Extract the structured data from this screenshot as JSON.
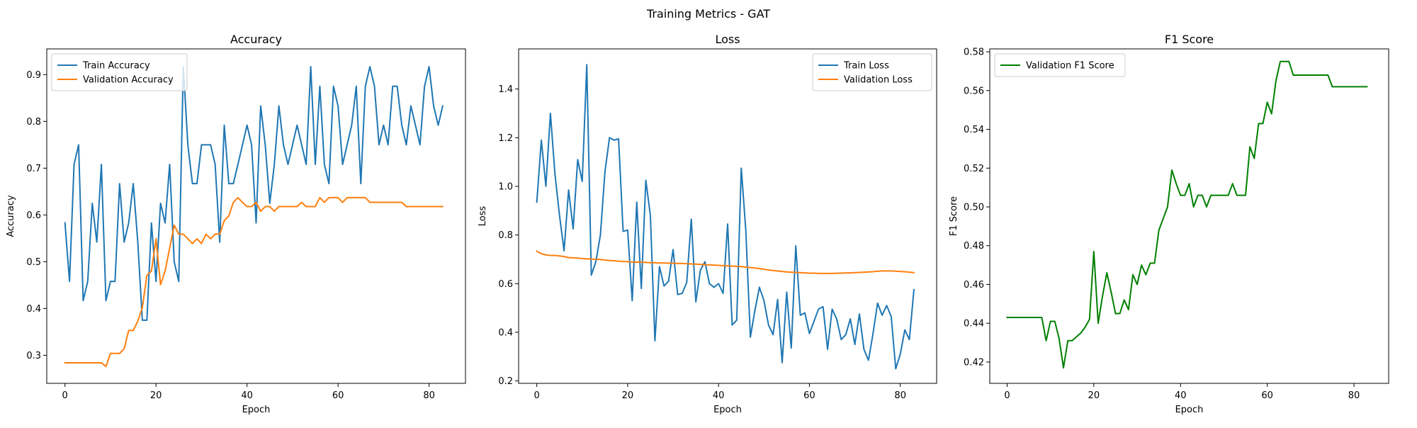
{
  "figure": {
    "suptitle": "Training Metrics - GAT"
  },
  "chart_data": [
    {
      "type": "line",
      "title": "Accuracy",
      "xlabel": "Epoch",
      "ylabel": "Accuracy",
      "xlim": [
        -4,
        88
      ],
      "ylim": [
        0.24,
        0.955
      ],
      "xticks": [
        0,
        20,
        40,
        60,
        80
      ],
      "yticks": [
        0.3,
        0.4,
        0.5,
        0.6,
        0.7,
        0.8,
        0.9
      ],
      "legend_loc": "upper-left",
      "grid": false,
      "x": [
        0,
        1,
        2,
        3,
        4,
        5,
        6,
        7,
        8,
        9,
        10,
        11,
        12,
        13,
        14,
        15,
        16,
        17,
        18,
        19,
        20,
        21,
        22,
        23,
        24,
        25,
        26,
        27,
        28,
        29,
        30,
        31,
        32,
        33,
        34,
        35,
        36,
        37,
        38,
        39,
        40,
        41,
        42,
        43,
        44,
        45,
        46,
        47,
        48,
        49,
        50,
        51,
        52,
        53,
        54,
        55,
        56,
        57,
        58,
        59,
        60,
        61,
        62,
        63,
        64,
        65,
        66,
        67,
        68,
        69,
        70,
        71,
        72,
        73,
        74,
        75,
        76,
        77,
        78,
        79,
        80,
        81,
        82,
        83
      ],
      "series": [
        {
          "name": "Train Accuracy",
          "color": "#1f77b4",
          "values": [
            0.583,
            0.458,
            0.708,
            0.75,
            0.417,
            0.458,
            0.625,
            0.542,
            0.708,
            0.417,
            0.458,
            0.458,
            0.667,
            0.542,
            0.583,
            0.667,
            0.542,
            0.375,
            0.375,
            0.583,
            0.458,
            0.625,
            0.583,
            0.708,
            0.5,
            0.458,
            0.917,
            0.75,
            0.667,
            0.667,
            0.75,
            0.75,
            0.75,
            0.708,
            0.542,
            0.792,
            0.667,
            0.667,
            0.708,
            0.75,
            0.792,
            0.75,
            0.583,
            0.833,
            0.75,
            0.625,
            0.708,
            0.833,
            0.75,
            0.708,
            0.75,
            0.792,
            0.75,
            0.708,
            0.917,
            0.708,
            0.875,
            0.708,
            0.667,
            0.875,
            0.833,
            0.708,
            0.75,
            0.792,
            0.875,
            0.667,
            0.875,
            0.917,
            0.875,
            0.75,
            0.792,
            0.75,
            0.875,
            0.875,
            0.792,
            0.75,
            0.833,
            0.792,
            0.75,
            0.875,
            0.917,
            0.833,
            0.792,
            0.833
          ]
        },
        {
          "name": "Validation Accuracy",
          "color": "#ff7f0e",
          "values": [
            0.284,
            0.284,
            0.284,
            0.284,
            0.284,
            0.284,
            0.284,
            0.284,
            0.284,
            0.276,
            0.304,
            0.304,
            0.304,
            0.314,
            0.353,
            0.353,
            0.373,
            0.402,
            0.471,
            0.48,
            0.549,
            0.451,
            0.48,
            0.529,
            0.578,
            0.559,
            0.559,
            0.549,
            0.539,
            0.549,
            0.539,
            0.559,
            0.549,
            0.559,
            0.559,
            0.588,
            0.598,
            0.627,
            0.637,
            0.627,
            0.618,
            0.618,
            0.627,
            0.608,
            0.618,
            0.618,
            0.608,
            0.618,
            0.618,
            0.618,
            0.618,
            0.618,
            0.627,
            0.618,
            0.618,
            0.618,
            0.637,
            0.627,
            0.637,
            0.637,
            0.637,
            0.627,
            0.637,
            0.637,
            0.637,
            0.637,
            0.637,
            0.627,
            0.627,
            0.627,
            0.627,
            0.627,
            0.627,
            0.627,
            0.627,
            0.618,
            0.618,
            0.618,
            0.618,
            0.618,
            0.618,
            0.618,
            0.618,
            0.618
          ]
        }
      ]
    },
    {
      "type": "line",
      "title": "Loss",
      "xlabel": "Epoch",
      "ylabel": "Loss",
      "xlim": [
        -4,
        88
      ],
      "ylim": [
        0.19,
        1.565
      ],
      "xticks": [
        0,
        20,
        40,
        60,
        80
      ],
      "yticks": [
        0.2,
        0.4,
        0.6,
        0.8,
        1.0,
        1.2,
        1.4
      ],
      "legend_loc": "upper-right",
      "grid": false,
      "x": [
        0,
        1,
        2,
        3,
        4,
        5,
        6,
        7,
        8,
        9,
        10,
        11,
        12,
        13,
        14,
        15,
        16,
        17,
        18,
        19,
        20,
        21,
        22,
        23,
        24,
        25,
        26,
        27,
        28,
        29,
        30,
        31,
        32,
        33,
        34,
        35,
        36,
        37,
        38,
        39,
        40,
        41,
        42,
        43,
        44,
        45,
        46,
        47,
        48,
        49,
        50,
        51,
        52,
        53,
        54,
        55,
        56,
        57,
        58,
        59,
        60,
        61,
        62,
        63,
        64,
        65,
        66,
        67,
        68,
        69,
        70,
        71,
        72,
        73,
        74,
        75,
        76,
        77,
        78,
        79,
        80,
        81,
        82,
        83
      ],
      "series": [
        {
          "name": "Train Loss",
          "color": "#1f77b4",
          "values": [
            0.935,
            1.19,
            1.0,
            1.3,
            1.05,
            0.88,
            0.735,
            0.985,
            0.825,
            1.11,
            1.02,
            1.5,
            0.635,
            0.69,
            0.8,
            1.06,
            1.2,
            1.19,
            1.195,
            0.815,
            0.82,
            0.53,
            0.935,
            0.58,
            1.025,
            0.88,
            0.365,
            0.67,
            0.59,
            0.61,
            0.74,
            0.555,
            0.56,
            0.605,
            0.865,
            0.525,
            0.655,
            0.69,
            0.6,
            0.585,
            0.6,
            0.56,
            0.845,
            0.43,
            0.45,
            1.075,
            0.82,
            0.38,
            0.49,
            0.585,
            0.53,
            0.43,
            0.39,
            0.535,
            0.275,
            0.565,
            0.335,
            0.755,
            0.47,
            0.48,
            0.395,
            0.445,
            0.495,
            0.505,
            0.33,
            0.495,
            0.455,
            0.37,
            0.39,
            0.455,
            0.35,
            0.475,
            0.33,
            0.285,
            0.395,
            0.52,
            0.47,
            0.51,
            0.465,
            0.25,
            0.31,
            0.41,
            0.37,
            0.575
          ]
        },
        {
          "name": "Validation Loss",
          "color": "#ff7f0e",
          "values": [
            0.733,
            0.723,
            0.718,
            0.716,
            0.716,
            0.714,
            0.711,
            0.707,
            0.706,
            0.705,
            0.703,
            0.702,
            0.701,
            0.7,
            0.699,
            0.697,
            0.695,
            0.694,
            0.692,
            0.691,
            0.69,
            0.689,
            0.688,
            0.688,
            0.687,
            0.686,
            0.686,
            0.685,
            0.685,
            0.684,
            0.684,
            0.683,
            0.683,
            0.682,
            0.681,
            0.68,
            0.679,
            0.678,
            0.677,
            0.676,
            0.675,
            0.674,
            0.673,
            0.672,
            0.671,
            0.67,
            0.668,
            0.666,
            0.664,
            0.662,
            0.659,
            0.656,
            0.654,
            0.652,
            0.65,
            0.648,
            0.647,
            0.646,
            0.645,
            0.644,
            0.643,
            0.643,
            0.642,
            0.642,
            0.642,
            0.642,
            0.643,
            0.643,
            0.644,
            0.644,
            0.645,
            0.646,
            0.647,
            0.648,
            0.649,
            0.651,
            0.652,
            0.652,
            0.652,
            0.651,
            0.65,
            0.649,
            0.647,
            0.645
          ]
        }
      ]
    },
    {
      "type": "line",
      "title": "F1 Score",
      "xlabel": "Epoch",
      "ylabel": "F1 Score",
      "xlim": [
        -4,
        88
      ],
      "ylim": [
        0.409,
        0.5815
      ],
      "xticks": [
        0,
        20,
        40,
        60,
        80
      ],
      "yticks": [
        0.42,
        0.44,
        0.46,
        0.48,
        0.5,
        0.52,
        0.54,
        0.56,
        0.58
      ],
      "legend_loc": "upper-left",
      "grid": false,
      "x": [
        0,
        1,
        2,
        3,
        4,
        5,
        6,
        7,
        8,
        9,
        10,
        11,
        12,
        13,
        14,
        15,
        16,
        17,
        18,
        19,
        20,
        21,
        22,
        23,
        24,
        25,
        26,
        27,
        28,
        29,
        30,
        31,
        32,
        33,
        34,
        35,
        36,
        37,
        38,
        39,
        40,
        41,
        42,
        43,
        44,
        45,
        46,
        47,
        48,
        49,
        50,
        51,
        52,
        53,
        54,
        55,
        56,
        57,
        58,
        59,
        60,
        61,
        62,
        63,
        64,
        65,
        66,
        67,
        68,
        69,
        70,
        71,
        72,
        73,
        74,
        75,
        76,
        77,
        78,
        79,
        80,
        81,
        82,
        83
      ],
      "series": [
        {
          "name": "Validation F1 Score",
          "color": "#008000",
          "values": [
            0.443,
            0.443,
            0.443,
            0.443,
            0.443,
            0.443,
            0.443,
            0.443,
            0.443,
            0.431,
            0.441,
            0.441,
            0.432,
            0.417,
            0.431,
            0.431,
            0.433,
            0.435,
            0.438,
            0.442,
            0.477,
            0.44,
            0.454,
            0.466,
            0.456,
            0.445,
            0.445,
            0.452,
            0.447,
            0.465,
            0.46,
            0.47,
            0.465,
            0.471,
            0.471,
            0.488,
            0.494,
            0.5,
            0.519,
            0.512,
            0.506,
            0.506,
            0.512,
            0.5,
            0.506,
            0.506,
            0.5,
            0.506,
            0.506,
            0.506,
            0.506,
            0.506,
            0.512,
            0.506,
            0.506,
            0.506,
            0.531,
            0.525,
            0.543,
            0.543,
            0.554,
            0.548,
            0.565,
            0.575,
            0.575,
            0.575,
            0.568,
            0.568,
            0.568,
            0.568,
            0.568,
            0.568,
            0.568,
            0.568,
            0.568,
            0.562,
            0.562,
            0.562,
            0.562,
            0.562,
            0.562,
            0.562,
            0.562,
            0.562
          ]
        }
      ]
    }
  ]
}
